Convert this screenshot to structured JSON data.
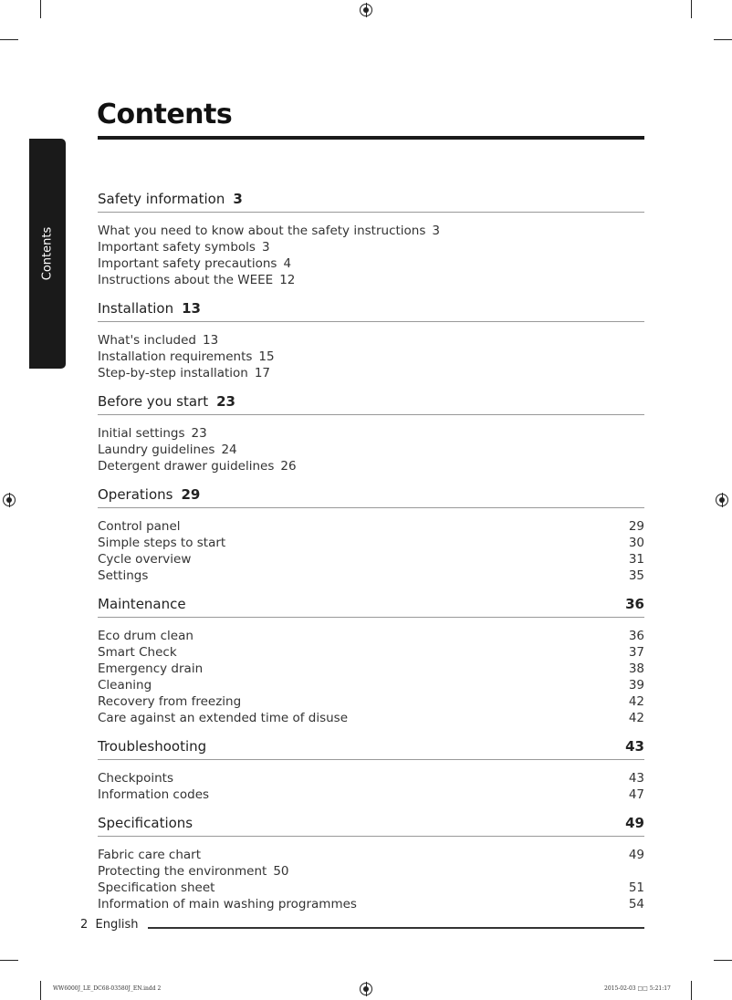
{
  "title": "Contents",
  "side_tab": "Contents",
  "sections": [
    {
      "title": "Safety information",
      "page": "3",
      "inline": true,
      "items": [
        {
          "title": "What you need to know about the safety instructions",
          "page": "3",
          "inline": true
        },
        {
          "title": "Important safety symbols",
          "page": "3",
          "inline": true
        },
        {
          "title": "Important safety precautions",
          "page": "4",
          "inline": true
        },
        {
          "title": "Instructions about the WEEE",
          "page": "12",
          "inline": true
        }
      ]
    },
    {
      "title": "Installation",
      "page": "13",
      "inline": true,
      "items": [
        {
          "title": "What's included",
          "page": "13",
          "inline": true
        },
        {
          "title": "Installation requirements",
          "page": "15",
          "inline": true
        },
        {
          "title": "Step-by-step installation",
          "page": "17",
          "inline": true
        }
      ]
    },
    {
      "title": "Before you start",
      "page": "23",
      "inline": true,
      "items": [
        {
          "title": "Initial settings",
          "page": "23",
          "inline": true
        },
        {
          "title": "Laundry guidelines",
          "page": "24",
          "inline": true
        },
        {
          "title": "Detergent drawer guidelines",
          "page": "26",
          "inline": true
        }
      ]
    },
    {
      "title": "Operations",
      "page": "29",
      "inline": true,
      "items": [
        {
          "title": "Control panel",
          "page": "29",
          "inline": false
        },
        {
          "title": "Simple steps to start",
          "page": "30",
          "inline": false
        },
        {
          "title": "Cycle overview",
          "page": "31",
          "inline": false
        },
        {
          "title": "Settings",
          "page": "35",
          "inline": false
        }
      ]
    },
    {
      "title": "Maintenance",
      "page": "36",
      "inline": false,
      "items": [
        {
          "title": "Eco drum clean",
          "page": "36",
          "inline": false
        },
        {
          "title": "Smart Check",
          "page": "37",
          "inline": false
        },
        {
          "title": "Emergency drain",
          "page": "38",
          "inline": false
        },
        {
          "title": "Cleaning",
          "page": "39",
          "inline": false
        },
        {
          "title": "Recovery from freezing",
          "page": "42",
          "inline": false
        },
        {
          "title": "Care against an extended time of disuse",
          "page": "42",
          "inline": false
        }
      ]
    },
    {
      "title": "Troubleshooting",
      "page": "43",
      "inline": false,
      "items": [
        {
          "title": "Checkpoints",
          "page": "43",
          "inline": false
        },
        {
          "title": "Information codes",
          "page": "47",
          "inline": false
        }
      ]
    },
    {
      "title": "Specifications",
      "page": "49",
      "inline": false,
      "items": [
        {
          "title": "Fabric care chart",
          "page": "49",
          "inline": false
        },
        {
          "title": "Protecting the environment",
          "page": "50",
          "inline": true
        },
        {
          "title": "Specification sheet",
          "page": "51",
          "inline": false
        },
        {
          "title": "Information of main washing programmes",
          "page": "54",
          "inline": false
        }
      ]
    }
  ],
  "footer": {
    "page": "2",
    "language": "English"
  },
  "slug": {
    "file": "WW6000J_LE_DC68-03580J_EN.indd   2",
    "date": "2015-02-03   □□ 5:21:17"
  }
}
